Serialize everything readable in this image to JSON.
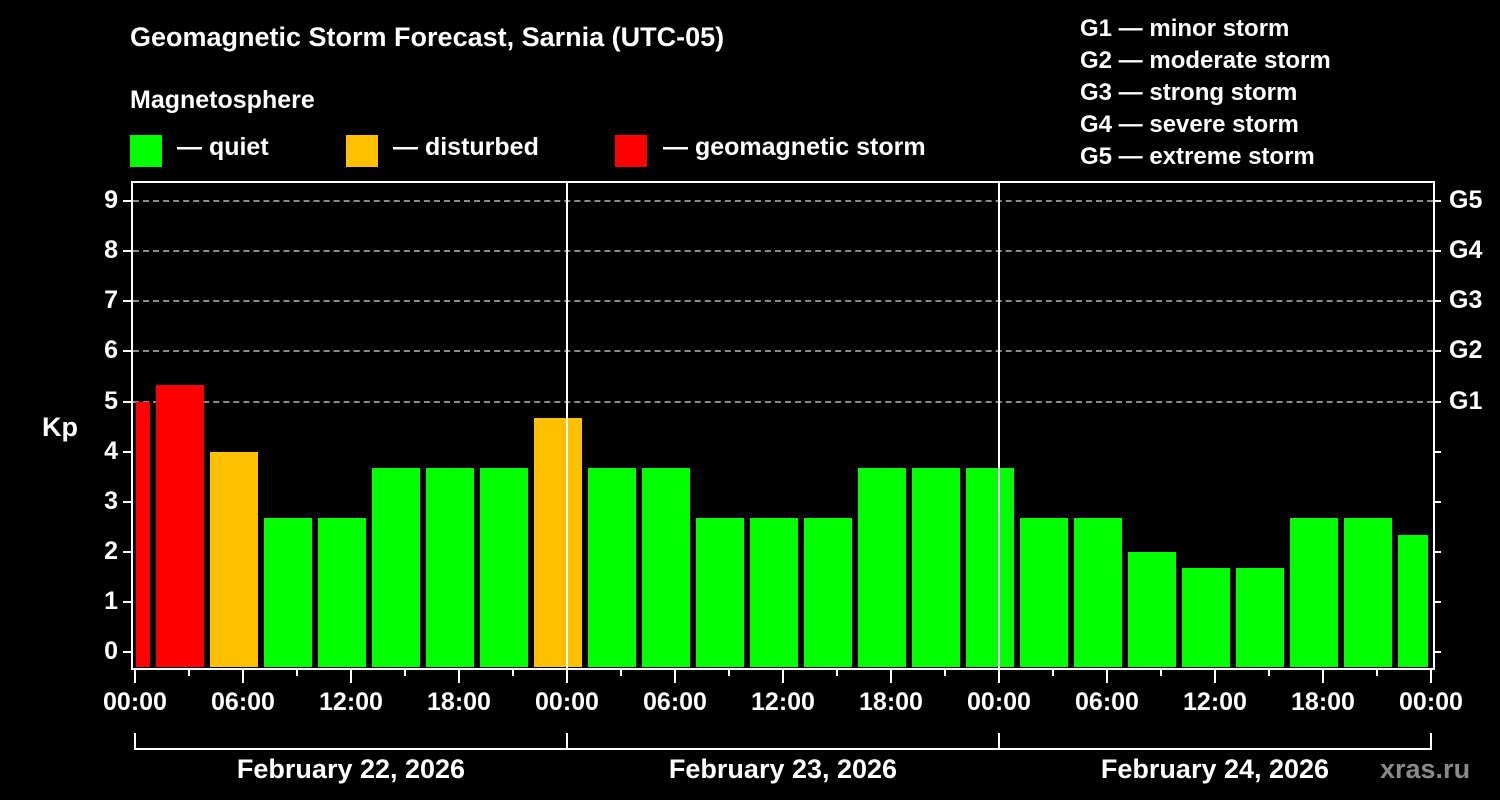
{
  "title": "Geomagnetic Storm Forecast, Sarnia (UTC-05)",
  "subtitle": "Magnetosphere",
  "legend": [
    {
      "label": "— quiet",
      "color": "#00ff00"
    },
    {
      "label": "— disturbed",
      "color": "#ffc000"
    },
    {
      "label": "— geomagnetic storm",
      "color": "#ff0000"
    }
  ],
  "g_scale_legend": [
    "G1 — minor storm",
    "G2 — moderate storm",
    "G3 — strong storm",
    "G4 — severe storm",
    "G5 — extreme storm"
  ],
  "y_axis": {
    "label": "Kp",
    "ticks": [
      "0",
      "1",
      "2",
      "3",
      "4",
      "5",
      "6",
      "7",
      "8",
      "9"
    ]
  },
  "right_axis": {
    "labels": [
      "G1",
      "G2",
      "G3",
      "G4",
      "G5"
    ]
  },
  "x_axis": {
    "tick_labels": [
      "00:00",
      "06:00",
      "12:00",
      "18:00",
      "00:00",
      "06:00",
      "12:00",
      "18:00",
      "00:00",
      "06:00",
      "12:00",
      "18:00",
      "00:00"
    ]
  },
  "dates": [
    "February 22, 2026",
    "February 23, 2026",
    "February 24, 2026"
  ],
  "watermark": "xras.ru",
  "colors": {
    "quiet": "#00ff00",
    "disturbed": "#ffc000",
    "storm": "#ff0000",
    "grid": "#8a8a8a",
    "background": "#000000"
  },
  "chart_data": {
    "type": "bar",
    "title": "Geomagnetic Storm Forecast, Sarnia (UTC-05)",
    "xlabel": "",
    "ylabel": "Kp",
    "ylim": [
      0,
      9
    ],
    "grid": "horizontal dashed at Kp 5-9",
    "legend_position": "top",
    "right_axis_labels": {
      "5": "G1",
      "6": "G2",
      "7": "G3",
      "8": "G4",
      "9": "G5"
    },
    "categories": [
      "Feb 22 00:00-01:00",
      "Feb 22 01:00",
      "Feb 22 04:00",
      "Feb 22 07:00",
      "Feb 22 10:00",
      "Feb 22 13:00",
      "Feb 22 16:00",
      "Feb 22 19:00",
      "Feb 22 22:00",
      "Feb 23 01:00",
      "Feb 23 04:00",
      "Feb 23 07:00",
      "Feb 23 10:00",
      "Feb 23 13:00",
      "Feb 23 16:00",
      "Feb 23 19:00",
      "Feb 23 22:00",
      "Feb 24 01:00",
      "Feb 24 04:00",
      "Feb 24 07:00",
      "Feb 24 10:00",
      "Feb 24 13:00",
      "Feb 24 16:00",
      "Feb 24 19:00",
      "Feb 24 22:00-24:00"
    ],
    "values": [
      5.0,
      5.33,
      4.0,
      2.67,
      2.67,
      3.67,
      3.67,
      3.67,
      4.67,
      3.67,
      3.67,
      2.67,
      2.67,
      2.67,
      3.67,
      3.67,
      3.67,
      2.67,
      2.67,
      2.0,
      1.67,
      1.67,
      2.67,
      2.67,
      2.33
    ],
    "status": [
      "storm",
      "storm",
      "disturbed",
      "quiet",
      "quiet",
      "quiet",
      "quiet",
      "quiet",
      "disturbed",
      "quiet",
      "quiet",
      "quiet",
      "quiet",
      "quiet",
      "quiet",
      "quiet",
      "quiet",
      "quiet",
      "quiet",
      "quiet",
      "quiet",
      "quiet",
      "quiet",
      "quiet",
      "quiet"
    ]
  }
}
